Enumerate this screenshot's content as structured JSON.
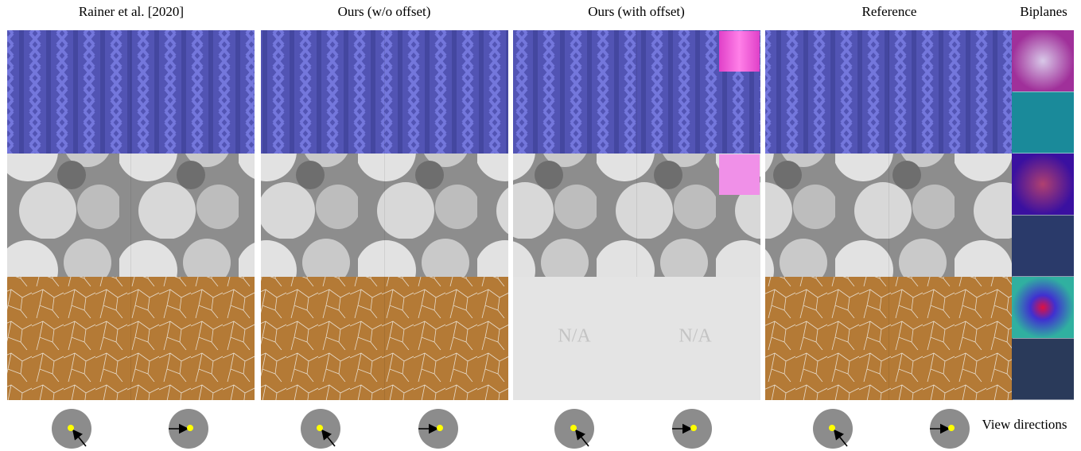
{
  "header": {
    "columns": [
      "Rainer et al. [2020]",
      "Ours (w/o offset)",
      "Ours (with offset)",
      "Reference",
      "Biplanes"
    ]
  },
  "placeholders": [
    "N/A",
    "N/A"
  ],
  "footer": {
    "label": "View directions"
  }
}
